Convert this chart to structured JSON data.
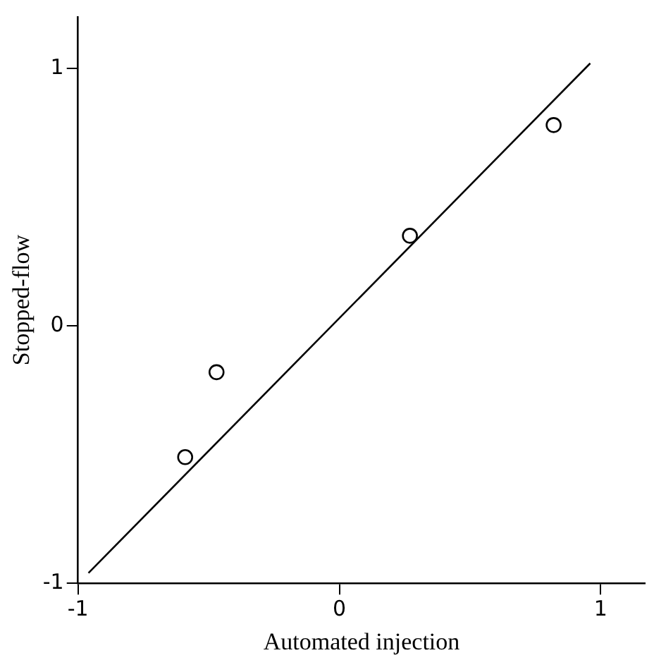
{
  "chart_data": {
    "type": "scatter",
    "xlabel": "Automated injection",
    "ylabel": "Stopped-flow",
    "xlim": [
      -1,
      1.17
    ],
    "ylim": [
      -1,
      1.2
    ],
    "xticks": [
      -1,
      0,
      1
    ],
    "yticks": [
      -1,
      0,
      1
    ],
    "grid": false,
    "legend": false,
    "marker": "circle",
    "series": [
      {
        "color": "#000000",
        "x": [
          -0.59,
          -0.47,
          0.27,
          0.82
        ],
        "values": [
          -0.51,
          -0.18,
          0.35,
          0.78
        ]
      },
      {
        "type": "line",
        "color": "#000000",
        "marker": "none",
        "line_style": "solid",
        "x": [
          -0.96,
          0.96
        ],
        "values": [
          -0.96,
          1.02
        ]
      }
    ]
  }
}
